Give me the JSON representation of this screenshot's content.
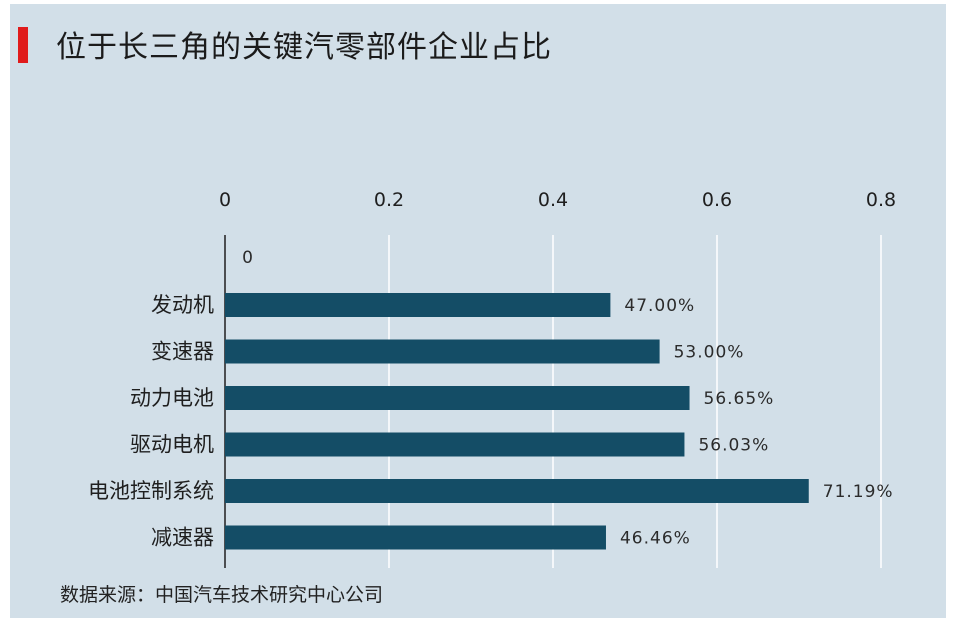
{
  "title": "位于长三角的关键汽零部件企业占比",
  "source": "数据来源：中国汽车技术研究中心公司",
  "colors": {
    "bar": "#144d66",
    "accent": "#e01b1b",
    "background": "#d2dfe8",
    "grid": "#ffffff"
  },
  "chart_data": {
    "type": "bar",
    "orientation": "horizontal",
    "xaxis_position": "top",
    "title": "位于长三角的关键汽零部件企业占比",
    "categories": [
      "发动机",
      "变速器",
      "动力电池",
      "驱动电机",
      "电池控制系统",
      "减速器"
    ],
    "values": [
      0.47,
      0.53,
      0.5665,
      0.5603,
      0.7119,
      0.4646
    ],
    "value_labels": [
      "47.00%",
      "53.00%",
      "56.65%",
      "56.03%",
      "71.19%",
      "46.46%"
    ],
    "xticks": [
      "0",
      "0.2",
      "0.4",
      "0.6",
      "0.8"
    ],
    "xlim": [
      0,
      0.8
    ],
    "extra_label": "0",
    "grid": true
  }
}
